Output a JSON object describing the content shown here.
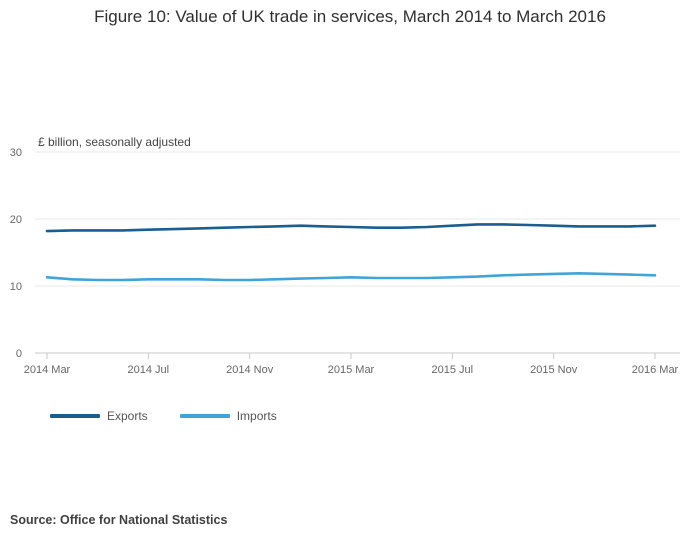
{
  "title": "Figure 10: Value of UK trade in services, March 2014 to March 2016",
  "subtitle": "£ billion, seasonally adjusted",
  "source": "Source: Office for National Statistics",
  "colors": {
    "exports": "#1a5d8f",
    "imports": "#41a4d8",
    "gridline": "#e8e8e8",
    "axis": "#c9c9c9",
    "tick_text": "#666666"
  },
  "legend": [
    {
      "label": "Exports",
      "color": "#1a5d8f"
    },
    {
      "label": "Imports",
      "color": "#41a4d8"
    }
  ],
  "chart_data": {
    "type": "line",
    "title": "Figure 10: Value of UK trade in services, March 2014 to March 2016",
    "ylabel": "£ billion, seasonally adjusted",
    "xlabel": "",
    "ylim": [
      0,
      30
    ],
    "yticks": [
      0,
      10,
      20,
      30
    ],
    "grid": true,
    "legend_position": "bottom",
    "x": [
      "2014 Mar",
      "2014 Apr",
      "2014 May",
      "2014 Jun",
      "2014 Jul",
      "2014 Aug",
      "2014 Sep",
      "2014 Oct",
      "2014 Nov",
      "2014 Dec",
      "2015 Jan",
      "2015 Feb",
      "2015 Mar",
      "2015 Apr",
      "2015 May",
      "2015 Jun",
      "2015 Jul",
      "2015 Aug",
      "2015 Sep",
      "2015 Oct",
      "2015 Nov",
      "2015 Dec",
      "2016 Jan",
      "2016 Feb",
      "2016 Mar"
    ],
    "x_tick_labels": [
      "2014 Mar",
      "2014 Jul",
      "2014 Nov",
      "2015 Mar",
      "2015 Jul",
      "2015 Nov",
      "2016 Mar"
    ],
    "series": [
      {
        "name": "Exports",
        "color": "#1a5d8f",
        "values": [
          18.2,
          18.3,
          18.3,
          18.3,
          18.4,
          18.5,
          18.6,
          18.7,
          18.8,
          18.9,
          19.0,
          18.9,
          18.8,
          18.7,
          18.7,
          18.8,
          19.0,
          19.2,
          19.2,
          19.1,
          19.0,
          18.9,
          18.9,
          18.9,
          19.0
        ]
      },
      {
        "name": "Imports",
        "color": "#41a4d8",
        "values": [
          11.3,
          11.0,
          10.9,
          10.9,
          11.0,
          11.0,
          11.0,
          10.9,
          10.9,
          11.0,
          11.1,
          11.2,
          11.3,
          11.2,
          11.2,
          11.2,
          11.3,
          11.4,
          11.6,
          11.7,
          11.8,
          11.9,
          11.8,
          11.7,
          11.6
        ]
      }
    ]
  }
}
